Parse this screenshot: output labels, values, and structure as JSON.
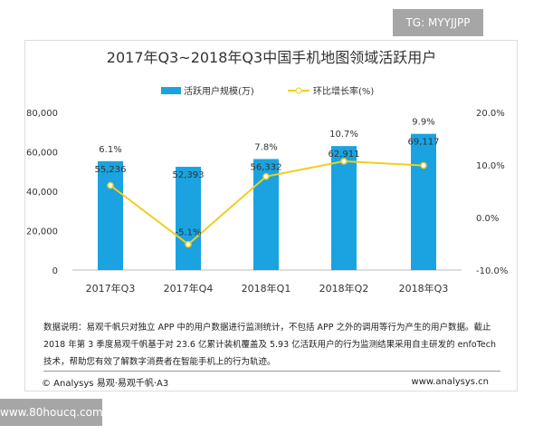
{
  "watermark_top": "TG: MYYJJPP",
  "watermark_bottom": "www.80houcq.com",
  "chart_data": {
    "type": "bar+line",
    "title": "2017年Q3~2018年Q3中国手机地图领域活跃用户",
    "categories": [
      "2017年Q3",
      "2017年Q4",
      "2018年Q1",
      "2018年Q2",
      "2018年Q3"
    ],
    "series": [
      {
        "name": "活跃用户规模(万)",
        "type": "bar",
        "axis": "left",
        "values": [
          55236,
          52393,
          56332,
          62911,
          69117
        ],
        "labels": [
          "55,236",
          "52,393",
          "56,332",
          "62,911",
          "69,117"
        ],
        "color": "#1aa3e0"
      },
      {
        "name": "环比增长率(%)",
        "type": "line",
        "axis": "right",
        "values": [
          6.1,
          -5.1,
          7.8,
          10.7,
          9.9
        ],
        "labels": [
          "6.1%",
          "-5.1%",
          "7.8%",
          "10.7%",
          "9.9%"
        ],
        "color": "#f2cd1f"
      }
    ],
    "yleft": {
      "ylim": [
        0,
        80000
      ],
      "ticks": [
        "0",
        "20,000",
        "40,000",
        "60,000",
        "80,000"
      ]
    },
    "yright": {
      "ylim": [
        -10,
        20
      ],
      "ticks": [
        "-10.0%",
        "0.0%",
        "10.0%",
        "20.0%"
      ]
    },
    "legend": "top-center"
  },
  "note": "数据说明：易观千帆只对独立 APP 中的用户数据进行监测统计，不包括 APP 之外的调用等行为产生的用户数据。截止 2018 年第 3 季度易观千帆基于对 23.6 亿累计装机覆盖及 5.93 亿活跃用户的行为监测结果采用自主研发的 enfoTech 技术，帮助您有效了解数字消费者在智能手机上的行为轨迹。",
  "footer_left": "© Analysys 易观·易观千帆·A3",
  "footer_right": "www.analysys.cn"
}
